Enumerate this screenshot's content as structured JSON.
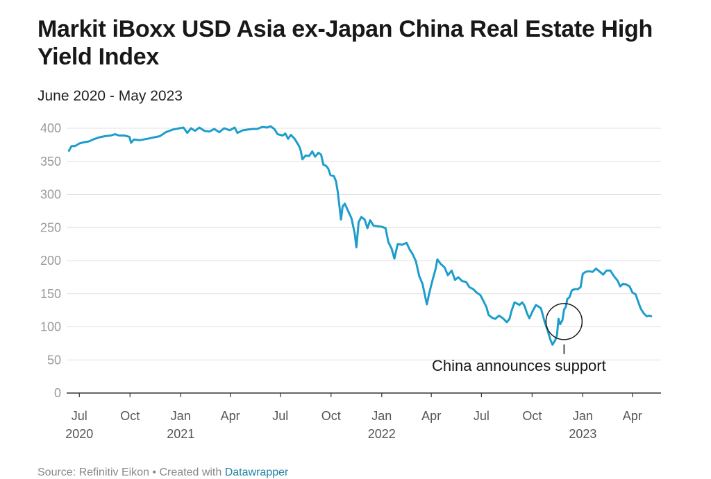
{
  "title": "Markit iBoxx USD Asia ex-Japan China Real Estate High Yield Index",
  "subtitle": "June 2020 - May 2023",
  "footer": {
    "source": "Source: Refinitiv Eikon • Created with ",
    "link": "Datawrapper"
  },
  "colors": {
    "line": "#1d9dcc",
    "grid": "#e0e0e0",
    "axis": "#333333"
  },
  "chart_data": {
    "type": "line",
    "ylim": [
      0,
      400
    ],
    "y_ticks": [
      0,
      50,
      100,
      150,
      200,
      250,
      300,
      350,
      400
    ],
    "x_range": [
      "2020-06-08",
      "2023-05-23"
    ],
    "x_ticks": [
      {
        "date": "2020-07-01",
        "label": "Jul",
        "year": "2020"
      },
      {
        "date": "2020-10-01",
        "label": "Oct",
        "year": ""
      },
      {
        "date": "2021-01-01",
        "label": "Jan",
        "year": "2021"
      },
      {
        "date": "2021-04-01",
        "label": "Apr",
        "year": ""
      },
      {
        "date": "2021-07-01",
        "label": "Jul",
        "year": ""
      },
      {
        "date": "2021-10-01",
        "label": "Oct",
        "year": ""
      },
      {
        "date": "2022-01-01",
        "label": "Jan",
        "year": "2022"
      },
      {
        "date": "2022-04-01",
        "label": "Apr",
        "year": ""
      },
      {
        "date": "2022-07-01",
        "label": "Jul",
        "year": ""
      },
      {
        "date": "2022-10-01",
        "label": "Oct",
        "year": ""
      },
      {
        "date": "2023-01-01",
        "label": "Jan",
        "year": "2023"
      },
      {
        "date": "2023-04-01",
        "label": "Apr",
        "year": ""
      }
    ],
    "annotation": {
      "date": "2022-11-28",
      "value": 108,
      "label": "China announces support"
    },
    "series": [
      {
        "points": [
          [
            "2020-06-12",
            366
          ],
          [
            "2020-06-17",
            373
          ],
          [
            "2020-06-23",
            373
          ],
          [
            "2020-07-01",
            377
          ],
          [
            "2020-07-10",
            379
          ],
          [
            "2020-07-18",
            380
          ],
          [
            "2020-07-26",
            383
          ],
          [
            "2020-08-05",
            386
          ],
          [
            "2020-08-16",
            388
          ],
          [
            "2020-08-27",
            389
          ],
          [
            "2020-09-04",
            391
          ],
          [
            "2020-09-11",
            389
          ],
          [
            "2020-09-21",
            389
          ],
          [
            "2020-09-30",
            387
          ],
          [
            "2020-10-03",
            378
          ],
          [
            "2020-10-08",
            383
          ],
          [
            "2020-10-19",
            382
          ],
          [
            "2020-11-01",
            384
          ],
          [
            "2020-11-12",
            386
          ],
          [
            "2020-11-24",
            388
          ],
          [
            "2020-12-05",
            394
          ],
          [
            "2020-12-18",
            398
          ],
          [
            "2020-12-30",
            400
          ],
          [
            "2021-01-06",
            401
          ],
          [
            "2021-01-13",
            393
          ],
          [
            "2021-01-20",
            400
          ],
          [
            "2021-01-27",
            396
          ],
          [
            "2021-02-04",
            401
          ],
          [
            "2021-02-13",
            396
          ],
          [
            "2021-02-22",
            395
          ],
          [
            "2021-03-03",
            399
          ],
          [
            "2021-03-12",
            394
          ],
          [
            "2021-03-21",
            400
          ],
          [
            "2021-03-31",
            397
          ],
          [
            "2021-04-09",
            401
          ],
          [
            "2021-04-14",
            393
          ],
          [
            "2021-04-24",
            397
          ],
          [
            "2021-05-03",
            398
          ],
          [
            "2021-05-12",
            399
          ],
          [
            "2021-05-20",
            399
          ],
          [
            "2021-05-29",
            402
          ],
          [
            "2021-06-07",
            401
          ],
          [
            "2021-06-13",
            403
          ],
          [
            "2021-06-20",
            399
          ],
          [
            "2021-06-26",
            391
          ],
          [
            "2021-07-05",
            389
          ],
          [
            "2021-07-10",
            392
          ],
          [
            "2021-07-15",
            384
          ],
          [
            "2021-07-20",
            390
          ],
          [
            "2021-07-27",
            384
          ],
          [
            "2021-08-04",
            373
          ],
          [
            "2021-08-07",
            366
          ],
          [
            "2021-08-10",
            353
          ],
          [
            "2021-08-16",
            359
          ],
          [
            "2021-08-22",
            358
          ],
          [
            "2021-08-28",
            365
          ],
          [
            "2021-09-02",
            357
          ],
          [
            "2021-09-08",
            363
          ],
          [
            "2021-09-13",
            360
          ],
          [
            "2021-09-17",
            345
          ],
          [
            "2021-09-22",
            343
          ],
          [
            "2021-09-26",
            339
          ],
          [
            "2021-09-30",
            329
          ],
          [
            "2021-10-06",
            328
          ],
          [
            "2021-10-10",
            320
          ],
          [
            "2021-10-13",
            305
          ],
          [
            "2021-10-17",
            277
          ],
          [
            "2021-10-19",
            262
          ],
          [
            "2021-10-22",
            282
          ],
          [
            "2021-10-26",
            286
          ],
          [
            "2021-11-01",
            275
          ],
          [
            "2021-11-07",
            264
          ],
          [
            "2021-11-13",
            241
          ],
          [
            "2021-11-16",
            220
          ],
          [
            "2021-11-20",
            258
          ],
          [
            "2021-11-25",
            266
          ],
          [
            "2021-12-01",
            262
          ],
          [
            "2021-12-06",
            249
          ],
          [
            "2021-12-11",
            261
          ],
          [
            "2021-12-17",
            253
          ],
          [
            "2021-12-23",
            252
          ],
          [
            "2022-01-02",
            251
          ],
          [
            "2022-01-08",
            249
          ],
          [
            "2022-01-13",
            228
          ],
          [
            "2022-01-19",
            218
          ],
          [
            "2022-01-24",
            203
          ],
          [
            "2022-01-30",
            225
          ],
          [
            "2022-02-07",
            224
          ],
          [
            "2022-02-15",
            227
          ],
          [
            "2022-02-20",
            218
          ],
          [
            "2022-02-26",
            210
          ],
          [
            "2022-03-04",
            199
          ],
          [
            "2022-03-10",
            177
          ],
          [
            "2022-03-16",
            165
          ],
          [
            "2022-03-21",
            145
          ],
          [
            "2022-03-24",
            134
          ],
          [
            "2022-03-28",
            150
          ],
          [
            "2022-04-03",
            170
          ],
          [
            "2022-04-09",
            188
          ],
          [
            "2022-04-12",
            202
          ],
          [
            "2022-04-18",
            195
          ],
          [
            "2022-04-25",
            190
          ],
          [
            "2022-05-01",
            178
          ],
          [
            "2022-05-08",
            185
          ],
          [
            "2022-05-14",
            171
          ],
          [
            "2022-05-20",
            175
          ],
          [
            "2022-05-27",
            169
          ],
          [
            "2022-06-03",
            168
          ],
          [
            "2022-06-09",
            160
          ],
          [
            "2022-06-16",
            157
          ],
          [
            "2022-06-22",
            152
          ],
          [
            "2022-06-29",
            148
          ],
          [
            "2022-07-04",
            140
          ],
          [
            "2022-07-10",
            130
          ],
          [
            "2022-07-14",
            118
          ],
          [
            "2022-07-20",
            114
          ],
          [
            "2022-07-26",
            112
          ],
          [
            "2022-08-02",
            117
          ],
          [
            "2022-08-09",
            113
          ],
          [
            "2022-08-16",
            107
          ],
          [
            "2022-08-21",
            112
          ],
          [
            "2022-08-25",
            125
          ],
          [
            "2022-08-30",
            137
          ],
          [
            "2022-09-04",
            135
          ],
          [
            "2022-09-08",
            133
          ],
          [
            "2022-09-13",
            137
          ],
          [
            "2022-09-17",
            132
          ],
          [
            "2022-09-22",
            120
          ],
          [
            "2022-09-26",
            113
          ],
          [
            "2022-10-02",
            124
          ],
          [
            "2022-10-08",
            133
          ],
          [
            "2022-10-12",
            131
          ],
          [
            "2022-10-17",
            128
          ],
          [
            "2022-10-24",
            107
          ],
          [
            "2022-10-29",
            95
          ],
          [
            "2022-11-03",
            81
          ],
          [
            "2022-11-07",
            73
          ],
          [
            "2022-11-12",
            80
          ],
          [
            "2022-11-15",
            87
          ],
          [
            "2022-11-18",
            112
          ],
          [
            "2022-11-21",
            104
          ],
          [
            "2022-11-25",
            110
          ],
          [
            "2022-11-28",
            126
          ],
          [
            "2022-12-01",
            130
          ],
          [
            "2022-12-04",
            142
          ],
          [
            "2022-12-08",
            145
          ],
          [
            "2022-12-12",
            155
          ],
          [
            "2022-12-17",
            157
          ],
          [
            "2022-12-23",
            157
          ],
          [
            "2022-12-28",
            160
          ],
          [
            "2023-01-01",
            180
          ],
          [
            "2023-01-06",
            183
          ],
          [
            "2023-01-12",
            184
          ],
          [
            "2023-01-19",
            183
          ],
          [
            "2023-01-25",
            188
          ],
          [
            "2023-01-31",
            184
          ],
          [
            "2023-02-07",
            179
          ],
          [
            "2023-02-13",
            185
          ],
          [
            "2023-02-20",
            185
          ],
          [
            "2023-02-27",
            176
          ],
          [
            "2023-03-05",
            170
          ],
          [
            "2023-03-10",
            161
          ],
          [
            "2023-03-15",
            165
          ],
          [
            "2023-03-21",
            164
          ],
          [
            "2023-03-27",
            161
          ],
          [
            "2023-04-01",
            152
          ],
          [
            "2023-04-07",
            149
          ],
          [
            "2023-04-12",
            137
          ],
          [
            "2023-04-16",
            128
          ],
          [
            "2023-04-22",
            120
          ],
          [
            "2023-04-27",
            116
          ],
          [
            "2023-05-02",
            117
          ],
          [
            "2023-05-05",
            116
          ]
        ]
      }
    ]
  }
}
